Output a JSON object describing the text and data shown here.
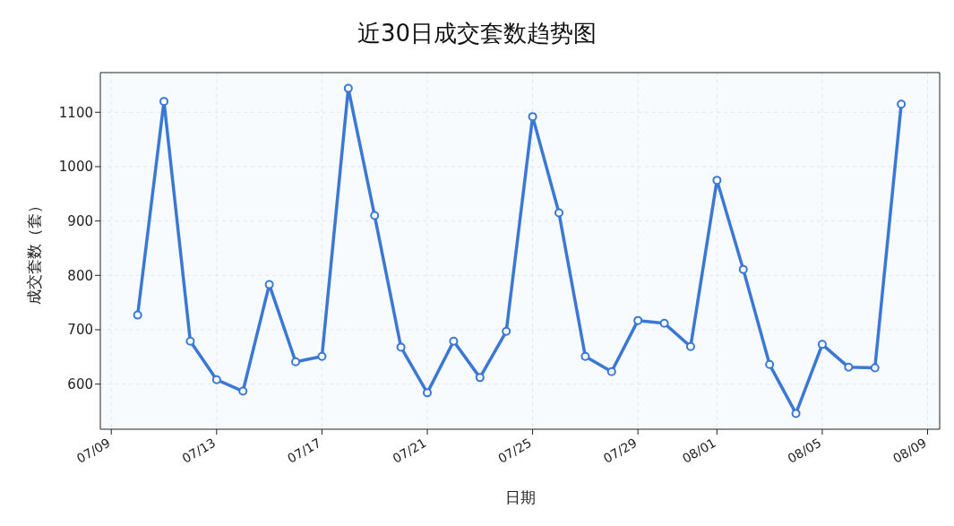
{
  "chart_data": {
    "type": "line",
    "title": "近30日成交套数趋势图",
    "xlabel": "日期",
    "ylabel": "成交套数（套）",
    "x": [
      "--07-10",
      "--07-11",
      "--07-12",
      "--07-13",
      "--07-14",
      "--07-15",
      "--07-16",
      "--07-17",
      "--07-18",
      "--07-19",
      "--07-20",
      "--07-21",
      "--07-22",
      "--07-23",
      "--07-24",
      "--07-25",
      "--07-26",
      "--07-27",
      "--07-28",
      "--07-29",
      "--07-30",
      "--07-31",
      "--08-01",
      "--08-02",
      "--08-03",
      "--08-04",
      "--08-05",
      "--08-06",
      "--08-07",
      "--08-08"
    ],
    "series": [
      {
        "color": "#3a78d4",
        "values": [
          727,
          1120,
          679,
          608,
          587,
          783,
          641,
          651,
          1144,
          910,
          668,
          584,
          679,
          612,
          697,
          1092,
          915,
          651,
          623,
          717,
          712,
          669,
          975,
          811,
          636,
          546,
          673,
          631,
          630,
          1115
        ]
      }
    ],
    "xlim": [
      "--07-08T14:00",
      "--08-09T11:00"
    ],
    "xticks": [
      {
        "value": "--07-09",
        "label": "07/09"
      },
      {
        "value": "--07-13",
        "label": "07/13"
      },
      {
        "value": "--07-17",
        "label": "07/17"
      },
      {
        "value": "--07-21",
        "label": "07/21"
      },
      {
        "value": "--07-25",
        "label": "07/25"
      },
      {
        "value": "--07-29",
        "label": "07/29"
      },
      {
        "value": "--08-01",
        "label": "08/01"
      },
      {
        "value": "--08-05",
        "label": "08/05"
      },
      {
        "value": "--08-09",
        "label": "08/09"
      }
    ],
    "ylim": [
      517,
      1173
    ],
    "yticks": [
      600,
      700,
      800,
      900,
      1000,
      1100
    ],
    "grid": true,
    "marker": "circle",
    "line_style": "solid",
    "legend": false
  }
}
